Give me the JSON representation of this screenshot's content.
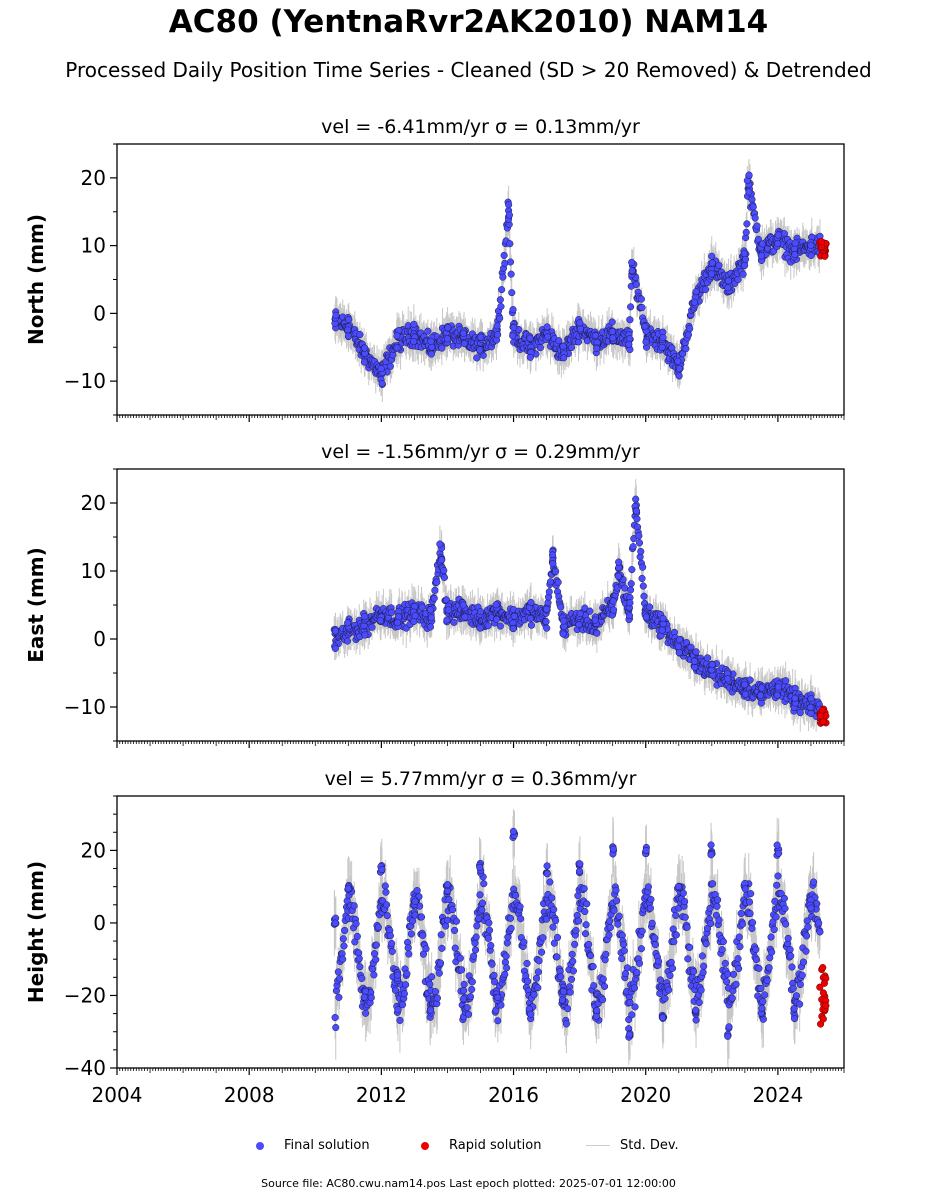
{
  "title": "AC80 (YentnaRvr2AK2010) NAM14",
  "subtitle": "Processed Daily Position Time Series - Cleaned (SD > 20 Removed) & Detrended",
  "legend": {
    "final": "Final solution",
    "rapid": "Rapid solution",
    "stddev": "Std. Dev."
  },
  "footer": "Source file: AC80.cwu.nam14.pos  Last epoch plotted: 2025-07-01 12:00:00",
  "colors": {
    "final": "#4b4bff",
    "rapid": "#ee0000",
    "stddev": "#b0b0b0"
  },
  "chart_data": [
    {
      "type": "scatter",
      "title": "vel = -6.41mm/yr   σ = 0.13mm/yr",
      "ylabel": "North (mm)",
      "xlim": [
        2004.0,
        2026.0
      ],
      "ylim": [
        -15,
        25
      ],
      "yticks": [
        -10,
        0,
        10,
        20
      ],
      "final_solution": [
        [
          2010.6,
          -1
        ],
        [
          2011.0,
          -2
        ],
        [
          2011.5,
          -6
        ],
        [
          2012.0,
          -9
        ],
        [
          2012.5,
          -4
        ],
        [
          2013.0,
          -3
        ],
        [
          2013.5,
          -5
        ],
        [
          2014.0,
          -3
        ],
        [
          2014.5,
          -4
        ],
        [
          2015.0,
          -5
        ],
        [
          2015.5,
          -3
        ],
        [
          2015.85,
          15
        ],
        [
          2016.0,
          -3
        ],
        [
          2016.5,
          -5
        ],
        [
          2017.0,
          -3
        ],
        [
          2017.5,
          -6
        ],
        [
          2018.0,
          -2
        ],
        [
          2018.5,
          -4
        ],
        [
          2019.0,
          -3
        ],
        [
          2019.5,
          -4
        ],
        [
          2019.6,
          7
        ],
        [
          2020.0,
          -3
        ],
        [
          2020.5,
          -4
        ],
        [
          2021.0,
          -8
        ],
        [
          2021.5,
          2
        ],
        [
          2022.0,
          7
        ],
        [
          2022.5,
          4
        ],
        [
          2023.0,
          8
        ],
        [
          2023.1,
          19
        ],
        [
          2023.5,
          9
        ],
        [
          2024.0,
          11
        ],
        [
          2024.5,
          9
        ],
        [
          2025.0,
          10
        ]
      ],
      "rapid_solution": [
        [
          2025.3,
          10
        ],
        [
          2025.4,
          9
        ]
      ],
      "extent": {
        "x_start": 2010.6,
        "x_end": 2025.45
      }
    },
    {
      "type": "scatter",
      "title": "vel = -1.56mm/yr   σ = 0.29mm/yr",
      "ylabel": "East (mm)",
      "xlim": [
        2004.0,
        2026.0
      ],
      "ylim": [
        -15,
        25
      ],
      "yticks": [
        -10,
        0,
        10,
        20
      ],
      "final_solution": [
        [
          2010.6,
          0
        ],
        [
          2011.0,
          1
        ],
        [
          2011.5,
          2
        ],
        [
          2012.0,
          4
        ],
        [
          2012.5,
          3
        ],
        [
          2013.0,
          4
        ],
        [
          2013.5,
          3
        ],
        [
          2013.8,
          13
        ],
        [
          2014.0,
          4
        ],
        [
          2014.5,
          4
        ],
        [
          2015.0,
          3
        ],
        [
          2015.5,
          4
        ],
        [
          2016.0,
          3
        ],
        [
          2016.5,
          4
        ],
        [
          2017.0,
          3
        ],
        [
          2017.2,
          12
        ],
        [
          2017.5,
          2
        ],
        [
          2018.0,
          3
        ],
        [
          2018.5,
          2
        ],
        [
          2019.0,
          5
        ],
        [
          2019.2,
          10
        ],
        [
          2019.5,
          4
        ],
        [
          2019.7,
          20
        ],
        [
          2020.0,
          4
        ],
        [
          2020.5,
          2
        ],
        [
          2021.0,
          -1
        ],
        [
          2021.5,
          -3
        ],
        [
          2022.0,
          -5
        ],
        [
          2022.5,
          -6
        ],
        [
          2023.0,
          -7
        ],
        [
          2023.5,
          -8
        ],
        [
          2024.0,
          -7
        ],
        [
          2024.5,
          -9
        ],
        [
          2025.0,
          -10
        ]
      ],
      "rapid_solution": [
        [
          2025.3,
          -11
        ],
        [
          2025.4,
          -12
        ]
      ],
      "extent": {
        "x_start": 2010.6,
        "x_end": 2025.45
      }
    },
    {
      "type": "scatter",
      "title": "vel = 5.77mm/yr   σ = 0.36mm/yr",
      "ylabel": "Height (mm)",
      "xlabel": "",
      "xlim": [
        2004.0,
        2026.0
      ],
      "ylim": [
        -40,
        35
      ],
      "yticks": [
        -40,
        -20,
        0,
        20
      ],
      "xticks": [
        2004,
        2008,
        2012,
        2016,
        2020,
        2024
      ],
      "final_solution": [
        [
          2010.6,
          0
        ],
        [
          2011.0,
          10
        ],
        [
          2011.5,
          -20
        ],
        [
          2012.0,
          15
        ],
        [
          2012.5,
          -15
        ],
        [
          2013.0,
          5
        ],
        [
          2013.5,
          -25
        ],
        [
          2014.0,
          10
        ],
        [
          2014.5,
          -20
        ],
        [
          2015.0,
          15
        ],
        [
          2015.5,
          -20
        ],
        [
          2016.0,
          25
        ],
        [
          2016.5,
          -25
        ],
        [
          2017.0,
          15
        ],
        [
          2017.5,
          -20
        ],
        [
          2018.0,
          15
        ],
        [
          2018.5,
          -25
        ],
        [
          2019.0,
          20
        ],
        [
          2019.5,
          -30
        ],
        [
          2020.0,
          20
        ],
        [
          2020.5,
          -25
        ],
        [
          2021.0,
          10
        ],
        [
          2021.5,
          -25
        ],
        [
          2022.0,
          20
        ],
        [
          2022.5,
          -30
        ],
        [
          2023.0,
          10
        ],
        [
          2023.5,
          -25
        ],
        [
          2024.0,
          20
        ],
        [
          2024.5,
          -25
        ],
        [
          2025.0,
          5
        ]
      ],
      "rapid_solution": [
        [
          2025.3,
          -15
        ],
        [
          2025.4,
          -25
        ]
      ],
      "extent": {
        "x_start": 2010.6,
        "x_end": 2025.45
      }
    }
  ]
}
